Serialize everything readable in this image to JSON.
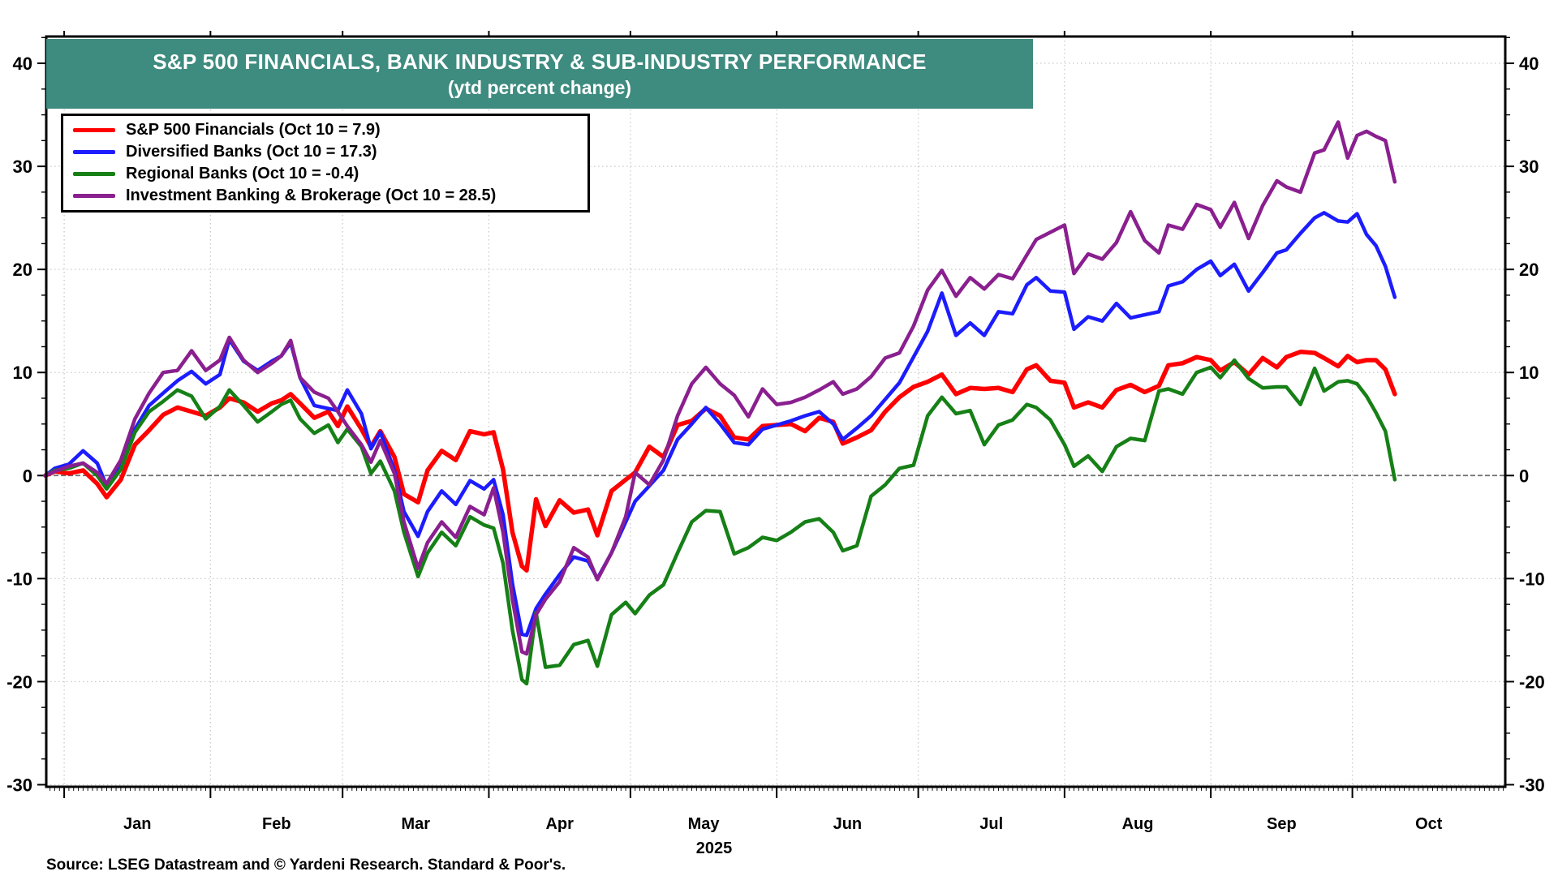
{
  "title": {
    "line1": "S&P 500 FINANCIALS, BANK INDUSTRY & SUB-INDUSTRY PERFORMANCE",
    "line2": "(ytd percent change)"
  },
  "colors": {
    "banner_bg": "#3E8B7F",
    "banner_text": "#FFFFFF",
    "frame": "#000000",
    "grid": "#C9C9C9",
    "zero_line": "#6E6E6E",
    "red": "#FF0000",
    "blue": "#1C1CFF",
    "green": "#168016",
    "purple": "#8A1F8F"
  },
  "footer": {
    "source": "Source: LSEG Datastream and © Yardeni Research. Standard & Poor's."
  },
  "chart_data": {
    "type": "line",
    "title": "S&P 500 FINANCIALS, BANK INDUSTRY & SUB-INDUSTRY PERFORMANCE",
    "subtitle": "(ytd percent change)",
    "ylabel": "ytd percent change",
    "grid": "dotted, at 10-unit intervals and month starts",
    "legend_position": "top-left box",
    "x_axis": {
      "unit": "day of year 2025",
      "months": [
        "Jan",
        "Feb",
        "Mar",
        "Apr",
        "May",
        "Jun",
        "Jul",
        "Aug",
        "Sep",
        "Oct"
      ],
      "month_start_days": [
        0,
        31,
        59,
        90,
        120,
        151,
        181,
        212,
        243,
        273
      ],
      "year": "2025",
      "xlim_days": [
        -3.8,
        305.4
      ]
    },
    "y_axis": {
      "ticks": [
        40,
        30,
        20,
        10,
        0,
        -10,
        -20,
        -30
      ],
      "minor_step": 2.5,
      "ylim": [
        -30.2,
        42.6
      ]
    },
    "x": [
      -4,
      -2,
      1,
      4,
      7,
      9,
      12,
      15,
      18,
      21,
      24,
      27,
      30,
      33,
      35,
      38,
      41,
      44,
      46,
      48,
      50,
      53,
      56,
      58,
      60,
      63,
      65,
      67,
      70,
      72,
      75,
      77,
      80,
      83,
      86,
      89,
      91,
      93,
      95,
      97,
      98,
      100,
      102,
      105,
      108,
      111,
      113,
      116,
      119,
      121,
      124,
      127,
      130,
      133,
      136,
      139,
      142,
      145,
      148,
      151,
      154,
      157,
      160,
      163,
      165,
      168,
      171,
      174,
      177,
      180,
      183,
      186,
      189,
      192,
      195,
      198,
      201,
      204,
      206,
      209,
      212,
      214,
      217,
      220,
      223,
      226,
      229,
      232,
      234,
      237,
      240,
      243,
      245,
      248,
      251,
      254,
      257,
      259,
      262,
      265,
      267,
      270,
      272,
      274,
      276,
      278,
      280,
      282
    ],
    "series": [
      {
        "name": "S&P 500 Financials",
        "legend_label": "S&P 500 Financials (Oct 10 = 7.9)",
        "last_date": "Oct 10",
        "last_value": 7.9,
        "color": "#FF0000",
        "width": 5.5,
        "values": [
          0.0,
          0.4,
          0.2,
          0.5,
          -0.8,
          -2.1,
          -0.4,
          3.0,
          4.4,
          5.9,
          6.6,
          6.2,
          5.8,
          6.6,
          7.5,
          7.1,
          6.2,
          7.0,
          7.3,
          7.9,
          7.0,
          5.6,
          6.2,
          4.8,
          6.7,
          4.5,
          2.8,
          4.3,
          1.8,
          -1.8,
          -2.6,
          0.5,
          2.4,
          1.5,
          4.3,
          4.0,
          4.2,
          0.6,
          -5.5,
          -8.8,
          -9.2,
          -2.3,
          -4.9,
          -2.4,
          -3.6,
          -3.3,
          -5.8,
          -1.5,
          -0.4,
          0.3,
          2.8,
          1.8,
          4.9,
          5.3,
          6.5,
          5.8,
          3.7,
          3.5,
          4.8,
          4.9,
          5.0,
          4.3,
          5.6,
          5.2,
          3.1,
          3.7,
          4.4,
          6.2,
          7.6,
          8.6,
          9.1,
          9.8,
          7.9,
          8.5,
          8.4,
          8.5,
          8.1,
          10.3,
          10.7,
          9.2,
          9.0,
          6.6,
          7.1,
          6.6,
          8.3,
          8.8,
          8.1,
          8.7,
          10.7,
          10.9,
          11.5,
          11.2,
          10.2,
          11.0,
          9.8,
          11.4,
          10.5,
          11.5,
          12.0,
          11.9,
          11.4,
          10.6,
          11.6,
          11.0,
          11.2,
          11.2,
          10.3,
          7.9
        ]
      },
      {
        "name": "Diversified Banks",
        "legend_label": "Diversified Banks (Oct 10 = 17.3)",
        "last_date": "Oct 10",
        "last_value": 17.3,
        "color": "#1C1CFF",
        "width": 4.5,
        "values": [
          0.0,
          0.7,
          1.1,
          2.4,
          1.2,
          -1.0,
          0.8,
          4.5,
          6.8,
          8.0,
          9.2,
          10.1,
          8.9,
          9.8,
          13.2,
          11.1,
          10.2,
          11.1,
          11.6,
          12.9,
          9.5,
          6.8,
          6.5,
          6.3,
          8.3,
          6.0,
          2.6,
          4.2,
          0.5,
          -3.5,
          -5.9,
          -3.5,
          -1.5,
          -2.8,
          -0.5,
          -1.3,
          -0.4,
          -3.8,
          -10.5,
          -15.4,
          -15.5,
          -12.9,
          -11.5,
          -9.6,
          -7.9,
          -8.3,
          -10.0,
          -7.5,
          -4.5,
          -2.5,
          -1.0,
          0.5,
          3.5,
          5.0,
          6.6,
          5.0,
          3.2,
          3.0,
          4.5,
          4.9,
          5.3,
          5.8,
          6.2,
          5.0,
          3.5,
          4.6,
          5.8,
          7.4,
          9.0,
          11.5,
          14.0,
          17.7,
          13.6,
          14.8,
          13.6,
          15.9,
          15.7,
          18.5,
          19.2,
          17.9,
          17.8,
          14.2,
          15.4,
          15.0,
          16.7,
          15.3,
          15.6,
          15.9,
          18.4,
          18.8,
          20.0,
          20.8,
          19.4,
          20.5,
          17.9,
          19.7,
          21.6,
          21.9,
          23.5,
          25.0,
          25.5,
          24.7,
          24.6,
          25.4,
          23.4,
          22.3,
          20.3,
          17.3
        ]
      },
      {
        "name": "Regional Banks",
        "legend_label": "Regional Banks (Oct 10 = -0.4)",
        "last_date": "Oct 10",
        "last_value": -0.4,
        "color": "#168016",
        "width": 4.5,
        "values": [
          0.0,
          0.5,
          0.7,
          1.2,
          0.0,
          -1.3,
          0.6,
          4.2,
          6.2,
          7.2,
          8.3,
          7.7,
          5.5,
          6.7,
          8.3,
          6.8,
          5.2,
          6.2,
          6.9,
          7.3,
          5.5,
          4.1,
          4.9,
          3.2,
          4.5,
          2.8,
          0.2,
          1.4,
          -1.5,
          -5.5,
          -9.8,
          -7.5,
          -5.5,
          -6.8,
          -4.0,
          -4.8,
          -5.1,
          -8.5,
          -15.0,
          -19.8,
          -20.2,
          -13.3,
          -18.6,
          -18.4,
          -16.4,
          -16.0,
          -18.5,
          -13.5,
          -12.3,
          -13.4,
          -11.6,
          -10.6,
          -7.5,
          -4.5,
          -3.4,
          -3.5,
          -7.6,
          -7.0,
          -6.0,
          -6.3,
          -5.5,
          -4.5,
          -4.2,
          -5.5,
          -7.3,
          -6.8,
          -2.0,
          -0.9,
          0.7,
          1.0,
          5.8,
          7.6,
          6.0,
          6.3,
          3.0,
          4.9,
          5.4,
          6.9,
          6.6,
          5.4,
          3.0,
          0.9,
          1.9,
          0.4,
          2.8,
          3.6,
          3.4,
          8.2,
          8.4,
          7.9,
          10.0,
          10.5,
          9.5,
          11.2,
          9.4,
          8.5,
          8.6,
          8.6,
          6.9,
          10.4,
          8.2,
          9.1,
          9.2,
          8.9,
          7.7,
          6.1,
          4.3,
          -0.4
        ]
      },
      {
        "name": "Investment Banking & Brokerage",
        "legend_label": "Investment Banking & Brokerage (Oct 10 = 28.5)",
        "last_date": "Oct 10",
        "last_value": 28.5,
        "color": "#8A1F8F",
        "width": 4.5,
        "values": [
          0.0,
          0.4,
          0.9,
          1.2,
          0.3,
          -0.8,
          1.5,
          5.5,
          8.0,
          10.0,
          10.2,
          12.1,
          10.2,
          11.2,
          13.4,
          11.2,
          10.0,
          10.9,
          11.6,
          13.1,
          9.5,
          8.1,
          7.5,
          6.2,
          4.8,
          3.0,
          1.3,
          3.4,
          0.2,
          -4.5,
          -9.0,
          -6.5,
          -4.5,
          -6.0,
          -3.0,
          -3.8,
          -1.2,
          -5.5,
          -12.0,
          -17.1,
          -17.3,
          -13.5,
          -12.0,
          -10.3,
          -7.0,
          -7.9,
          -10.1,
          -7.5,
          -4.0,
          0.3,
          -0.9,
          1.5,
          5.8,
          8.9,
          10.5,
          8.9,
          7.8,
          5.7,
          8.4,
          6.9,
          7.1,
          7.6,
          8.3,
          9.1,
          7.9,
          8.4,
          9.6,
          11.4,
          11.9,
          14.5,
          18.0,
          19.9,
          17.4,
          19.2,
          18.1,
          19.5,
          19.1,
          21.4,
          22.9,
          23.6,
          24.3,
          19.6,
          21.5,
          21.0,
          22.6,
          25.6,
          22.8,
          21.6,
          24.3,
          23.9,
          26.3,
          25.8,
          24.1,
          26.5,
          23.0,
          26.2,
          28.6,
          28.0,
          27.5,
          31.3,
          31.6,
          34.3,
          30.8,
          33.0,
          33.4,
          32.9,
          32.5,
          28.5
        ]
      }
    ]
  }
}
